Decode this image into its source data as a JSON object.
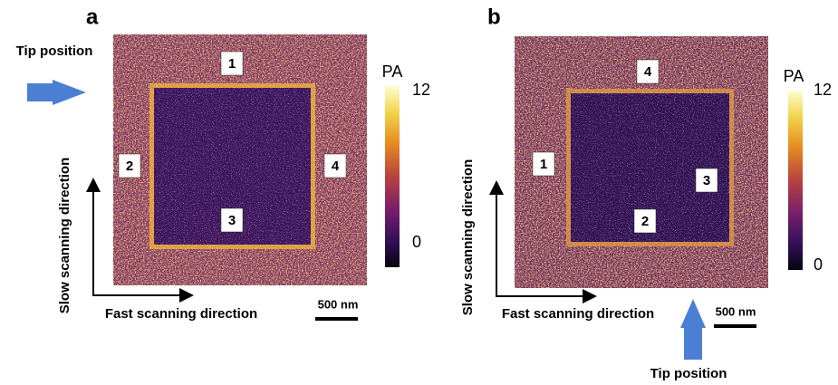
{
  "panels": [
    {
      "label": "a",
      "tip_label": "Tip position",
      "regions": [
        "1",
        "2",
        "3",
        "4"
      ],
      "colorbar": {
        "title": "PA",
        "max_label": "12",
        "min_label": "0"
      },
      "y_axis_label": "Slow scanning direction",
      "x_axis_label": "Fast scanning direction",
      "scale_bar": "500 nm"
    },
    {
      "label": "b",
      "tip_label": "Tip position",
      "regions": [
        "1",
        "2",
        "3",
        "4"
      ],
      "colorbar": {
        "title": "PA",
        "max_label": "12",
        "min_label": "0"
      },
      "y_axis_label": "Slow scanning direction",
      "x_axis_label": "Fast scanning direction",
      "scale_bar": "500 nm"
    }
  ]
}
